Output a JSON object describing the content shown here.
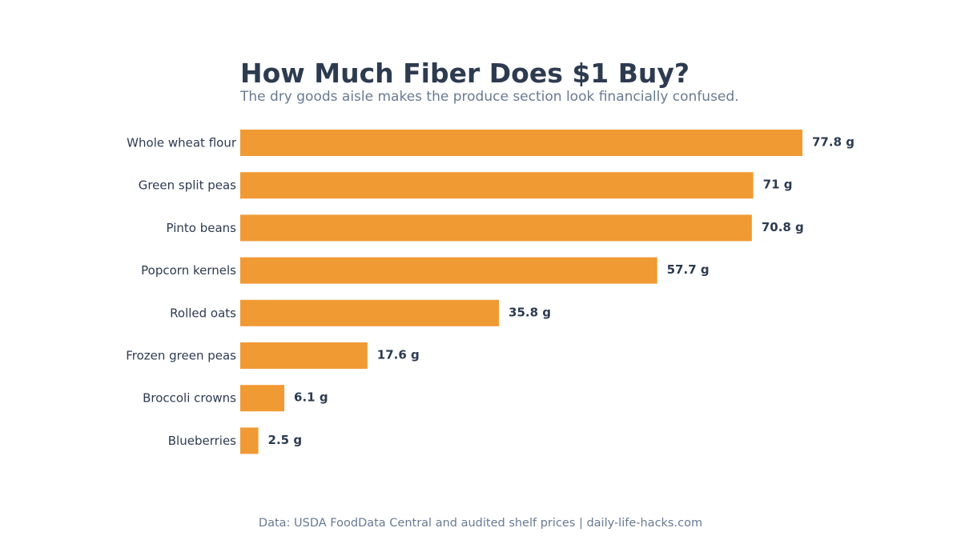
{
  "chart_data": {
    "type": "bar",
    "orientation": "horizontal",
    "title": "How Much Fiber Does $1 Buy?",
    "subtitle": "The dry goods aisle makes the produce section look financially confused.",
    "categories": [
      "Whole wheat flour",
      "Green split peas",
      "Pinto beans",
      "Popcorn kernels",
      "Rolled oats",
      "Frozen green peas",
      "Broccoli crowns",
      "Blueberries"
    ],
    "values": [
      77.8,
      71,
      70.8,
      57.7,
      35.8,
      17.6,
      6.1,
      2.5
    ],
    "value_labels": [
      "77.8 g",
      "71 g",
      "70.8 g",
      "57.7 g",
      "35.8 g",
      "17.6 g",
      "6.1 g",
      "2.5 g"
    ],
    "xlim": [
      0,
      77.8
    ],
    "xlabel": "",
    "ylabel": "",
    "grid": false,
    "legend": "none",
    "source": "Data: USDA FoodData Central and audited shelf prices | daily-life-hacks.com"
  },
  "colors": {
    "bar": "#f09a33",
    "title": "#2d3b50",
    "subtitle": "#687a91",
    "label": "#2d3b50",
    "footer": "#687a91"
  }
}
